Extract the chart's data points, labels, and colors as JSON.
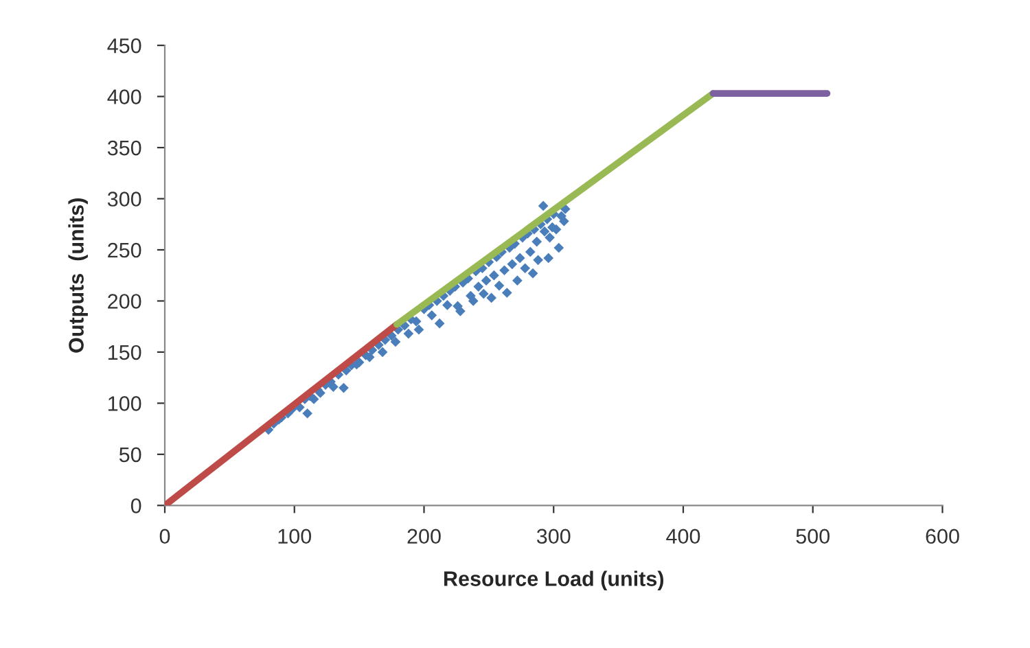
{
  "chart_data": {
    "type": "scatter",
    "xlabel": "Resource Load (units)",
    "ylabel": "Outputs  (units)",
    "xlim": [
      0,
      600
    ],
    "xticks": [
      0,
      100,
      200,
      300,
      400,
      500,
      600
    ],
    "ylim": [
      0,
      450
    ],
    "yticks": [
      0,
      50,
      100,
      150,
      200,
      250,
      300,
      350,
      400,
      450
    ],
    "grid": false,
    "legend": false,
    "series": [
      {
        "marker": "diamond",
        "color": "#4a7ebb",
        "x": [
          80,
          84,
          88,
          90,
          95,
          98,
          104,
          108,
          110,
          112,
          115,
          118,
          120,
          124,
          128,
          130,
          134,
          138,
          140,
          144,
          148,
          150,
          155,
          158,
          160,
          165,
          168,
          170,
          175,
          178,
          180,
          185,
          188,
          190,
          194,
          196,
          200,
          204,
          206,
          210,
          212,
          215,
          218,
          220,
          224,
          226,
          228,
          230,
          234,
          236,
          238,
          240,
          242,
          245,
          246,
          248,
          250,
          252,
          254,
          256,
          258,
          260,
          262,
          264,
          266,
          268,
          270,
          272,
          274,
          276,
          278,
          280,
          282,
          284,
          285,
          287,
          288,
          290,
          292,
          293,
          295,
          296,
          297,
          299,
          300,
          302,
          304,
          306,
          308,
          309
        ],
        "values": [
          74,
          80,
          84,
          86,
          90,
          94,
          96,
          104,
          90,
          107,
          104,
          113,
          110,
          118,
          121,
          116,
          128,
          115,
          132,
          137,
          138,
          140,
          147,
          145,
          152,
          157,
          150,
          162,
          166,
          160,
          172,
          176,
          168,
          182,
          180,
          172,
          192,
          196,
          186,
          200,
          178,
          205,
          196,
          210,
          214,
          195,
          190,
          218,
          222,
          205,
          200,
          229,
          214,
          232,
          207,
          220,
          238,
          203,
          225,
          243,
          215,
          248,
          230,
          208,
          252,
          236,
          256,
          220,
          242,
          262,
          232,
          266,
          248,
          227,
          270,
          258,
          240,
          275,
          293,
          268,
          280,
          242,
          262,
          272,
          285,
          270,
          252,
          283,
          278,
          290
        ]
      },
      {
        "type": "line",
        "marker": "none",
        "line_style": "solid",
        "color": "#be4b48",
        "x": [
          0,
          179
        ],
        "values": [
          0,
          177
        ]
      },
      {
        "type": "line",
        "marker": "none",
        "line_style": "solid",
        "color": "#98b954",
        "x": [
          179,
          423
        ],
        "values": [
          177,
          403
        ]
      },
      {
        "type": "line",
        "marker": "none",
        "line_style": "solid",
        "color": "#7d60a0",
        "x": [
          423,
          511
        ],
        "values": [
          403,
          403
        ]
      }
    ]
  }
}
